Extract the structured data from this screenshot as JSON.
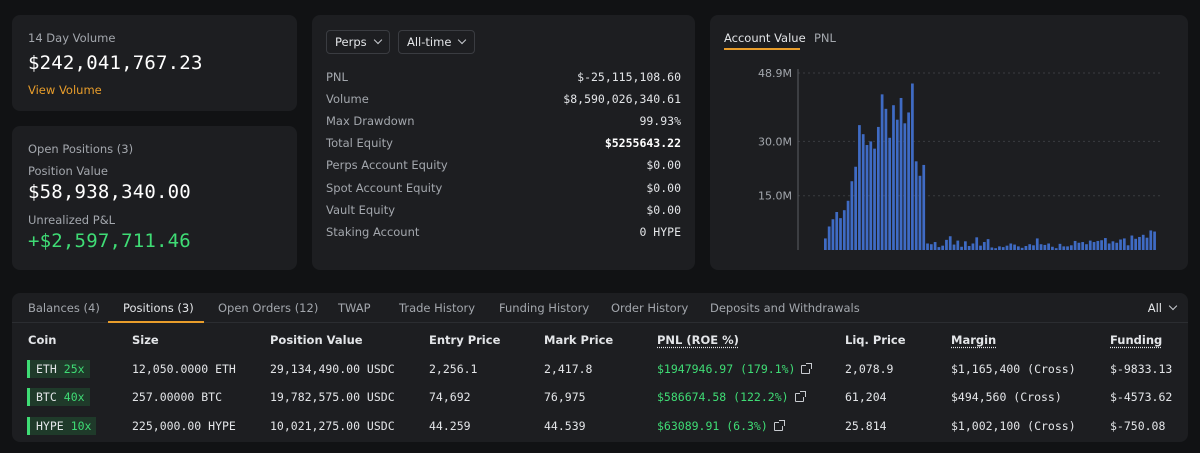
{
  "volume_card": {
    "label": "14 Day Volume",
    "value": "$242,041,767.23",
    "link": "View Volume"
  },
  "positions_card": {
    "title": "Open Positions (3)",
    "position_value_label": "Position Value",
    "position_value": "$58,938,340.00",
    "unrealized_label": "Unrealized P&L",
    "unrealized_value": "+$2,597,711.46"
  },
  "stats": {
    "dropdown_market": "Perps",
    "dropdown_range": "All-time",
    "rows": [
      {
        "k": "PNL",
        "v": "$-25,115,108.60"
      },
      {
        "k": "Volume",
        "v": "$8,590,026,340.61"
      },
      {
        "k": "Max Drawdown",
        "v": "99.93%"
      },
      {
        "k": "Total Equity",
        "v": "$5255643.22"
      },
      {
        "k": "Perps Account Equity",
        "v": "$0.00"
      },
      {
        "k": "Spot Account Equity",
        "v": "$0.00"
      },
      {
        "k": "Vault Equity",
        "v": "$0.00"
      },
      {
        "k": "Staking Account",
        "v": "0 HYPE"
      }
    ]
  },
  "chart_tabs": {
    "account_value": "Account Value",
    "pnl": "PNL"
  },
  "chart_data": {
    "type": "bar",
    "title": "",
    "xlabel": "",
    "ylabel": "",
    "ylim": [
      0,
      48.9
    ],
    "yticks": [
      {
        "value": 15.0,
        "label": "15.0M"
      },
      {
        "value": 30.0,
        "label": "30.0M"
      },
      {
        "value": 48.9,
        "label": "48.9M"
      }
    ],
    "grid": true,
    "color": "#3f6bc4",
    "values": [
      3.2,
      6.5,
      8.5,
      10.5,
      8.8,
      11,
      13.6,
      19,
      23,
      34.5,
      32,
      29,
      30,
      28,
      34,
      43,
      39,
      31,
      40,
      36,
      42,
      35,
      38,
      46,
      24.5,
      20.5,
      23.5,
      1.8,
      1.6,
      2.2,
      0.8,
      1.2,
      2.8,
      3.8,
      1.5,
      2.6,
      0.9,
      2.4,
      1.1,
      1.8,
      3.5,
      1.2,
      2.2,
      3.0,
      0.7,
      0.5,
      1.0,
      0.8,
      1.2,
      1.8,
      1.5,
      1.0,
      0.6,
      1.1,
      1.6,
      1.3,
      3.2,
      1.6,
      1.4,
      1.8,
      0.9,
      0.5,
      1.7,
      1.0,
      1.0,
      1.3,
      2.5,
      2.0,
      2.2,
      1.6,
      2.6,
      2.2,
      2.5,
      2.7,
      3.3,
      1.8,
      2.4,
      2.0,
      2.9,
      3.2,
      1.3,
      4.0,
      3.1,
      3.6,
      4.2,
      3.4,
      5.4,
      5.1
    ]
  },
  "table": {
    "tabs": [
      "Balances (4)",
      "Positions (3)",
      "Open Orders (12)",
      "TWAP",
      "Trade History",
      "Funding History",
      "Order History",
      "Deposits and Withdrawals"
    ],
    "filter": "All",
    "headers": {
      "coin": "Coin",
      "size": "Size",
      "position_value": "Position Value",
      "entry": "Entry Price",
      "mark": "Mark Price",
      "pnl": "PNL (ROE %)",
      "liq": "Liq. Price",
      "margin": "Margin",
      "funding": "Funding"
    },
    "rows": [
      {
        "coin": "ETH",
        "lev": "25x",
        "size": "12,050.0000 ETH",
        "value": "29,134,490.00 USDC",
        "entry": "2,256.1",
        "mark": "2,417.8",
        "pnl": "$1947946.97 (179.1%)",
        "liq": "2,078.9",
        "margin": "$1,165,400 (Cross)",
        "funding": "$-9833.13"
      },
      {
        "coin": "BTC",
        "lev": "40x",
        "size": "257.00000 BTC",
        "value": "19,782,575.00 USDC",
        "entry": "74,692",
        "mark": "76,975",
        "pnl": "$586674.58 (122.2%)",
        "liq": "61,204",
        "margin": "$494,560 (Cross)",
        "funding": "$-4573.62"
      },
      {
        "coin": "HYPE",
        "lev": "10x",
        "size": "225,000.00 HYPE",
        "value": "10,021,275.00 USDC",
        "entry": "44.259",
        "mark": "44.539",
        "pnl": "$63089.91 (6.3%)",
        "liq": "25.814",
        "margin": "$1,002,100 (Cross)",
        "funding": "$-750.08"
      }
    ]
  }
}
